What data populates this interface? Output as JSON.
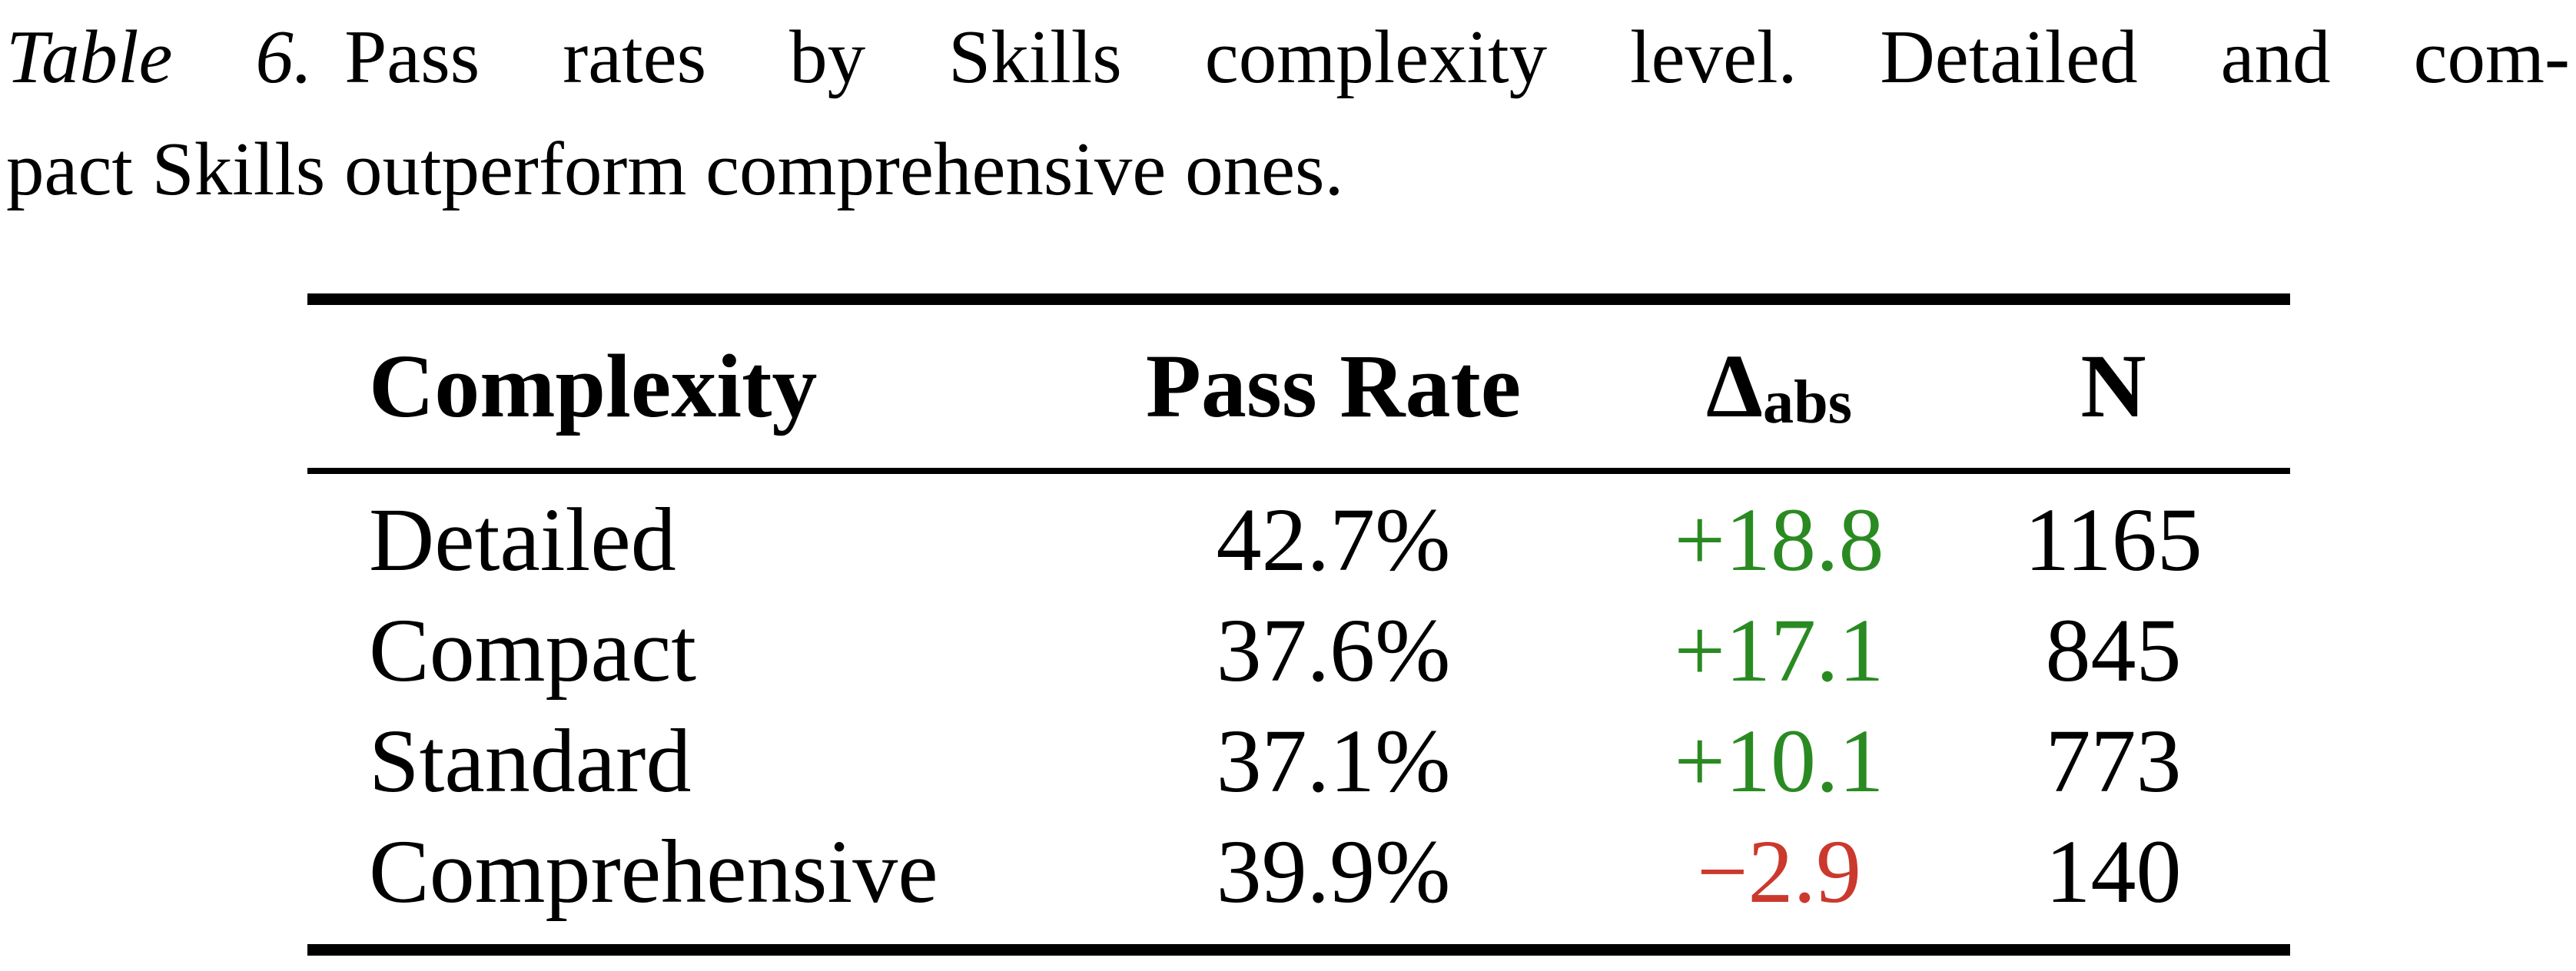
{
  "caption": {
    "label": "Table 6.",
    "line1": "Pass rates by Skills complexity level. Detailed and com-",
    "line2": "pact Skills outperform comprehensive ones."
  },
  "table": {
    "header": {
      "complexity": "Complexity",
      "pass_rate": "Pass Rate",
      "delta_symbol": "Δ",
      "delta_subscript": "abs",
      "n": "N"
    },
    "rows": [
      {
        "complexity": "Detailed",
        "pass_rate": "42.7%",
        "delta": "+18.8",
        "delta_color": "#2A8A22",
        "n": "1165"
      },
      {
        "complexity": "Compact",
        "pass_rate": "37.6%",
        "delta": "+17.1",
        "delta_color": "#2A8A22",
        "n": "845"
      },
      {
        "complexity": "Standard",
        "pass_rate": "37.1%",
        "delta": "+10.1",
        "delta_color": "#2A8A22",
        "n": "773"
      },
      {
        "complexity": "Comprehensive",
        "pass_rate": "39.9%",
        "delta": "−2.9",
        "delta_color": "#CB392D",
        "n": "140"
      }
    ],
    "colors": {
      "positive_delta": "#2A8A22",
      "negative_delta": "#CB392D",
      "rule": "#000000",
      "text": "#000000"
    }
  }
}
